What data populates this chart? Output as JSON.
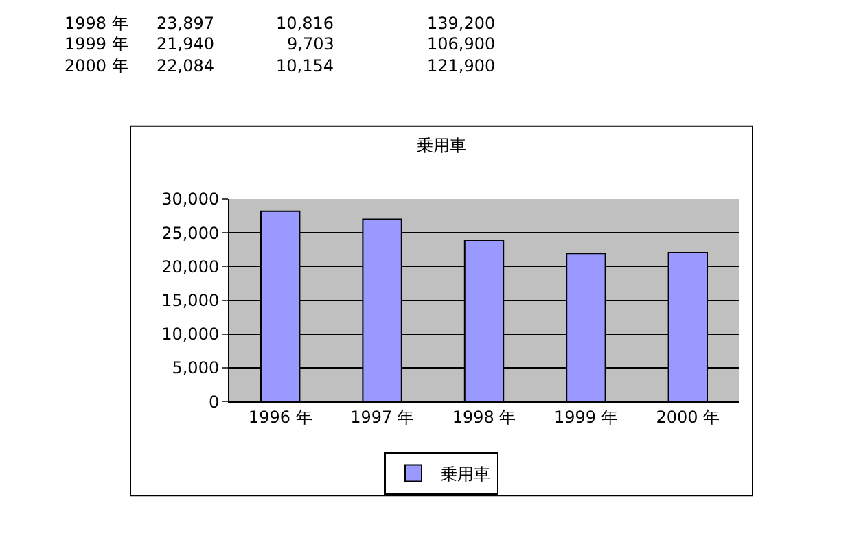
{
  "chart_data": {
    "type": "bar",
    "title": "乗用車",
    "categories": [
      "1996 年",
      "1997 年",
      "1998 年",
      "1999 年",
      "2000 年"
    ],
    "series": [
      {
        "name": "乗用車",
        "color": "#9999ff",
        "values": [
          28200,
          27000,
          23897,
          21940,
          22084
        ]
      }
    ],
    "ylim": [
      0,
      30000
    ],
    "yticks": [
      {
        "value": 0,
        "label": "0"
      },
      {
        "value": 5000,
        "label": "5,000"
      },
      {
        "value": 10000,
        "label": "10,000"
      },
      {
        "value": 15000,
        "label": "15,000"
      },
      {
        "value": 20000,
        "label": "20,000"
      },
      {
        "value": 25000,
        "label": "25,000"
      },
      {
        "value": 30000,
        "label": "30,000"
      }
    ],
    "grid": "y",
    "legend": "bottom",
    "annotations": [
      "1998 年",
      "23,897",
      "10,816",
      "139,200",
      "1999 年",
      "21,940",
      "9,703",
      "106,900",
      "2000 年",
      "22,084",
      "10,154",
      "121,900"
    ]
  }
}
